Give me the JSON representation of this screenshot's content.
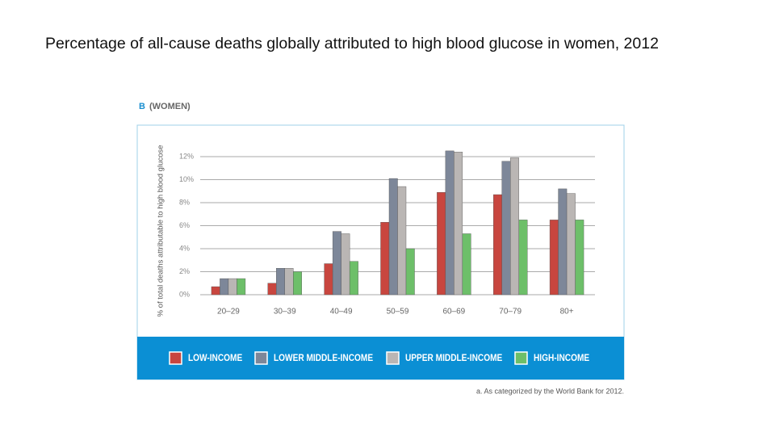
{
  "chart_data": {
    "type": "bar",
    "title": "Percentage of all-cause deaths globally attributed to high blood glucose in women, 2012",
    "panel_label": "B",
    "subtitle": "(WOMEN)",
    "y_label": "% of total deaths attributable to high blood glucose",
    "footnote": "a. As categorized by the World Bank for 2012.",
    "categories": [
      "20–29",
      "30–39",
      "40–49",
      "50–59",
      "60–69",
      "70–79",
      "80+"
    ],
    "series": [
      {
        "name": "LOW-INCOME",
        "color": "#c8463f",
        "values": [
          0.7,
          1.0,
          2.7,
          6.3,
          8.9,
          8.7,
          6.5
        ]
      },
      {
        "name": "LOWER MIDDLE-INCOME",
        "color": "#7d8799",
        "values": [
          1.4,
          2.3,
          5.5,
          10.1,
          12.5,
          11.6,
          9.2
        ]
      },
      {
        "name": "UPPER MIDDLE-INCOME",
        "color": "#bab6b4",
        "values": [
          1.4,
          2.3,
          5.3,
          9.4,
          12.4,
          11.9,
          8.8
        ]
      },
      {
        "name": "HIGH-INCOME",
        "color": "#6dbf69",
        "values": [
          1.4,
          2.0,
          2.9,
          4.0,
          5.3,
          6.5,
          6.5
        ]
      }
    ],
    "ylim": [
      0,
      12.6
    ],
    "yticks": [
      {
        "value": 0,
        "label": "0%"
      },
      {
        "value": 2,
        "label": "2%"
      },
      {
        "value": 4,
        "label": "4%"
      },
      {
        "value": 6,
        "label": "6%"
      },
      {
        "value": 8,
        "label": "8%"
      },
      {
        "value": 10,
        "label": "10%"
      },
      {
        "value": 12,
        "label": "12%"
      }
    ],
    "grid": true
  }
}
